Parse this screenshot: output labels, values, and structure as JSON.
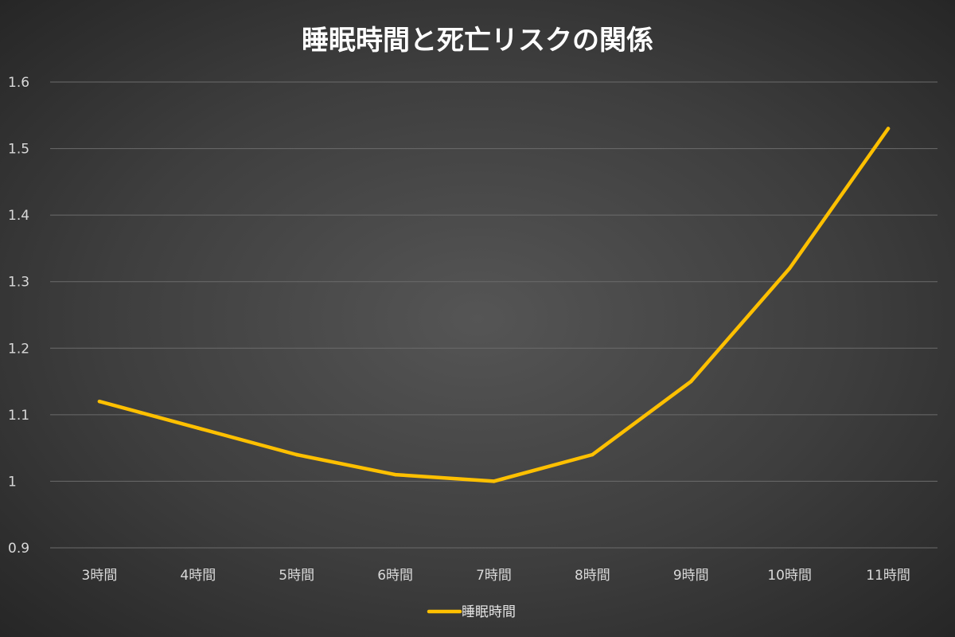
{
  "chart_data": {
    "type": "line",
    "title": "睡眠時間と死亡リスクの関係",
    "xlabel": "",
    "ylabel": "",
    "categories": [
      "3時間",
      "4時間",
      "5時間",
      "6時間",
      "7時間",
      "8時間",
      "9時間",
      "10時間",
      "11時間"
    ],
    "series": [
      {
        "name": "睡眠時間",
        "values": [
          1.12,
          1.08,
          1.04,
          1.01,
          1.0,
          1.04,
          1.15,
          1.32,
          1.53
        ]
      }
    ],
    "ylim": [
      0.9,
      1.6
    ],
    "yticks": [
      "0.9",
      "1",
      "1.1",
      "1.2",
      "1.3",
      "1.4",
      "1.5",
      "1.6"
    ],
    "grid": true,
    "legend_position": "bottom",
    "colors": {
      "line": "#FFC000",
      "grid": "#6b6b6b",
      "text": "#d9d9d9",
      "title": "#ffffff"
    }
  }
}
